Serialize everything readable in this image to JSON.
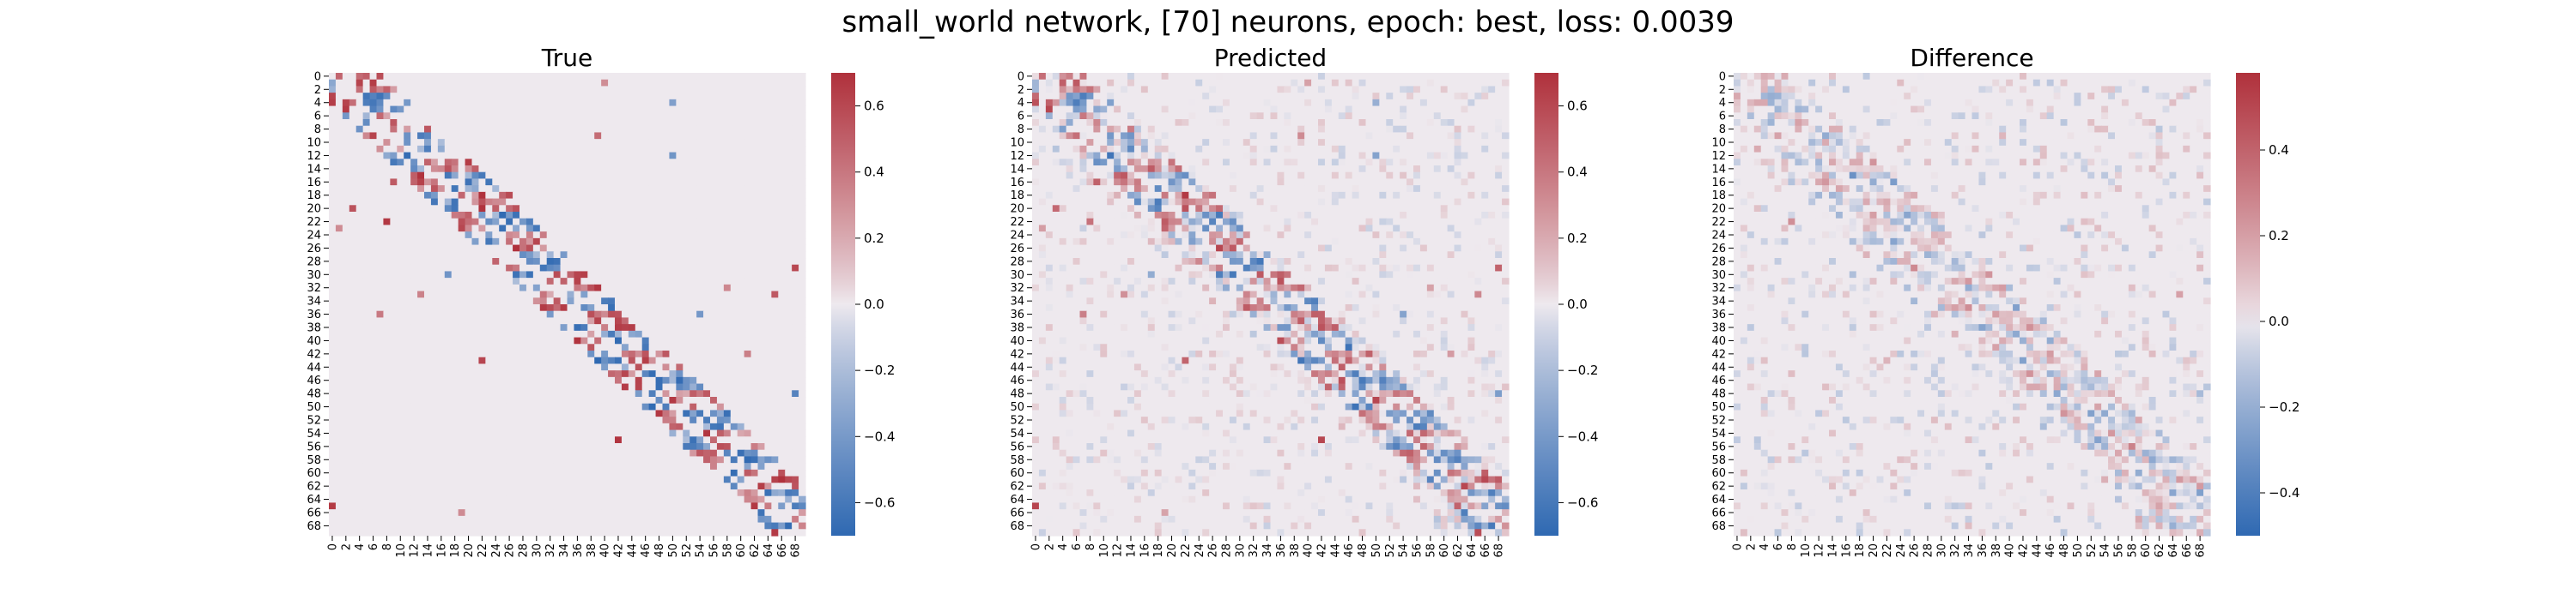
{
  "figure": {
    "suptitle": "small_world network, [70] neurons, epoch: best, loss: 0.0039"
  },
  "colors": {
    "negative": "#2f69b2",
    "neutral": "#eee9ee",
    "positive": "#b0313c",
    "background": "#ffffff"
  },
  "chart_data": [
    {
      "type": "heatmap",
      "title": "True",
      "n": 70,
      "vlim": [
        -0.7,
        0.7
      ],
      "colorbar_ticks": [
        -0.6,
        -0.4,
        -0.2,
        0.0,
        0.2,
        0.4,
        0.6
      ],
      "tick_labels": [
        "0",
        "2",
        "4",
        "6",
        "8",
        "10",
        "12",
        "14",
        "16",
        "18",
        "20",
        "22",
        "24",
        "26",
        "28",
        "30",
        "32",
        "34",
        "36",
        "38",
        "40",
        "42",
        "44",
        "46",
        "48",
        "50",
        "52",
        "54",
        "56",
        "58",
        "60",
        "62",
        "64",
        "66",
        "68"
      ],
      "colormap": "vlag (blue-white-red)",
      "structure": "banded small-world weights concentrated near the diagonal (~±6 off-diagonal), a few sparse long-range entries"
    },
    {
      "type": "heatmap",
      "title": "Predicted",
      "n": 70,
      "vlim": [
        -0.7,
        0.7
      ],
      "colorbar_ticks": [
        -0.6,
        -0.4,
        -0.2,
        0.0,
        0.2,
        0.4,
        0.6
      ],
      "tick_labels": [
        "0",
        "2",
        "4",
        "6",
        "8",
        "10",
        "12",
        "14",
        "16",
        "18",
        "20",
        "22",
        "24",
        "26",
        "28",
        "30",
        "32",
        "34",
        "36",
        "38",
        "40",
        "42",
        "44",
        "46",
        "48",
        "50",
        "52",
        "54",
        "56",
        "58",
        "60",
        "62",
        "64",
        "66",
        "68"
      ],
      "colormap": "vlag (blue-white-red)",
      "structure": "similar band to True with weaker magnitudes and light noise across the matrix"
    },
    {
      "type": "heatmap",
      "title": "Difference",
      "n": 70,
      "vlim": [
        -0.5,
        0.58
      ],
      "colorbar_ticks": [
        -0.4,
        -0.2,
        0.0,
        0.2,
        0.4
      ],
      "tick_labels": [
        "0",
        "2",
        "4",
        "6",
        "8",
        "10",
        "12",
        "14",
        "16",
        "18",
        "20",
        "22",
        "24",
        "26",
        "28",
        "30",
        "32",
        "34",
        "36",
        "38",
        "40",
        "42",
        "44",
        "46",
        "48",
        "50",
        "52",
        "54",
        "56",
        "58",
        "60",
        "62",
        "64",
        "66",
        "68"
      ],
      "colormap": "vlag (blue-white-red)",
      "structure": "residual errors concentrated along the diagonal band with small scattered noise"
    }
  ]
}
